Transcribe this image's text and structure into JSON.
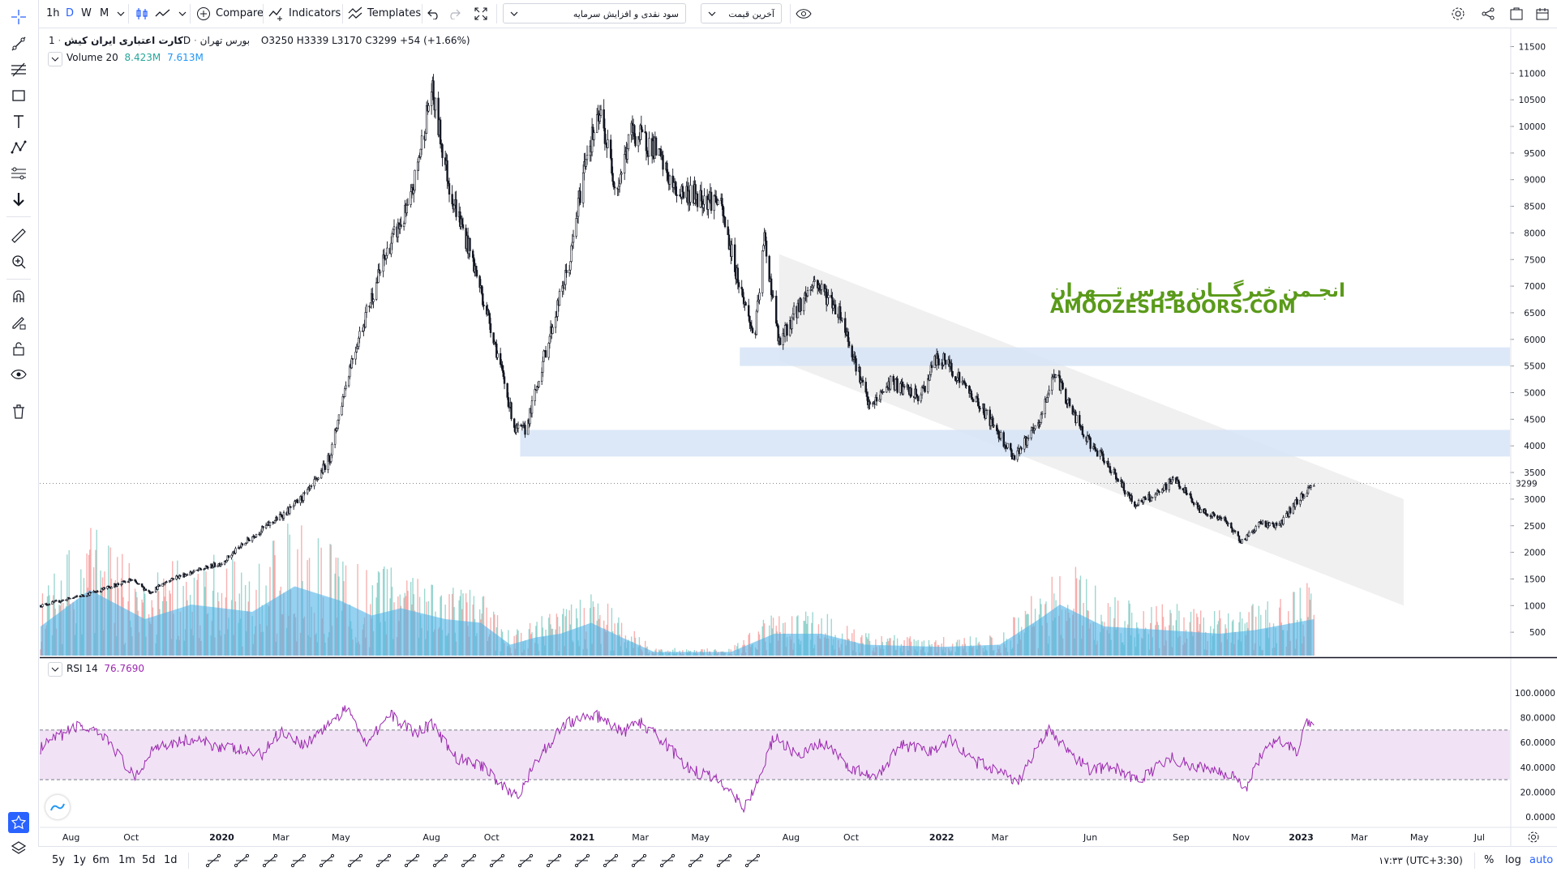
{
  "toolbar": {
    "intervals": [
      "1h",
      "D",
      "W",
      "M"
    ],
    "compare_label": "Compare",
    "indicators_label": "Indicators",
    "templates_label": "Templates",
    "dropdown_1": "سود نقدی و افزایش سرمایه",
    "dropdown_2": "آخرین قیمت"
  },
  "legend": {
    "symbol_name": "کارت اعتباری ایران کیش",
    "interval": "1D",
    "exchange": "بورس تهران",
    "open": "O3250",
    "high": "H3339",
    "low": "L3170",
    "close": "C3299",
    "change": "+54 (+1.66%)",
    "volume_label": "Volume 20",
    "volume_value": "8.423M",
    "volume_ma": "7.613M",
    "rsi_label": "RSI 14",
    "rsi_value": "76.7690"
  },
  "watermark": {
    "line1": "انجـمن خبرگـــان بورس تـــهران",
    "line2": "AMOOZESH-BOORS.COM"
  },
  "bottom": {
    "ranges": [
      "5y",
      "1y",
      "6m",
      "1m",
      "5d",
      "1d"
    ],
    "time": "۱۷:۳۳ (UTC+3:30)",
    "percent": "%",
    "log": "log",
    "auto": "auto"
  },
  "colors": {
    "up": "#26a69a",
    "down": "#ef5350",
    "volume_ma": "#4fb3e8",
    "rsi_line": "#9c27b0",
    "rsi_band": "#f1e3f5",
    "zone": "#d6e4f7",
    "channel": "#e9e9e9",
    "accent": "#2962ff"
  },
  "chart_data": [
    {
      "type": "candlestick",
      "title": "کارت اعتباری ایران کیش",
      "y_ticks": [
        500,
        1000,
        1500,
        2000,
        2500,
        3000,
        3500,
        4000,
        4500,
        5000,
        5500,
        6000,
        6500,
        7000,
        7500,
        8000,
        8500,
        9000,
        9500,
        10000,
        10500,
        11000,
        11500
      ],
      "ylim": [
        0,
        11800
      ],
      "last_price": 3299,
      "x_ticks": [
        "Aug",
        "Oct",
        "2020",
        "Mar",
        "May",
        "Aug",
        "Oct",
        "2021",
        "Mar",
        "May",
        "Aug",
        "Oct",
        "2022",
        "Mar",
        "Jun",
        "Sep",
        "Nov",
        "2023",
        "Mar",
        "May",
        "Jul"
      ],
      "price_path": [
        [
          "2019-07-01",
          1000
        ],
        [
          "2019-08-15",
          1200
        ],
        [
          "2019-10-01",
          1480
        ],
        [
          "2019-10-20",
          1250
        ],
        [
          "2019-11-10",
          1500
        ],
        [
          "2020-01-01",
          1800
        ],
        [
          "2020-02-01",
          2300
        ],
        [
          "2020-03-10",
          2800
        ],
        [
          "2020-04-01",
          3200
        ],
        [
          "2020-04-20",
          3800
        ],
        [
          "2020-05-10",
          5500
        ],
        [
          "2020-06-01",
          6800
        ],
        [
          "2020-06-20",
          7800
        ],
        [
          "2020-07-10",
          8500
        ],
        [
          "2020-08-01",
          10700
        ],
        [
          "2020-08-20",
          8800
        ],
        [
          "2020-09-10",
          7600
        ],
        [
          "2020-10-01",
          6200
        ],
        [
          "2020-10-25",
          4300
        ],
        [
          "2020-11-05",
          4300
        ],
        [
          "2020-11-25",
          5800
        ],
        [
          "2020-12-20",
          7500
        ],
        [
          "2021-01-05",
          9500
        ],
        [
          "2021-01-20",
          10200
        ],
        [
          "2021-02-05",
          8800
        ],
        [
          "2021-02-20",
          9900
        ],
        [
          "2021-03-15",
          9600
        ],
        [
          "2021-04-05",
          8800
        ],
        [
          "2021-05-20",
          8600
        ],
        [
          "2021-06-10",
          7000
        ],
        [
          "2021-06-25",
          6000
        ],
        [
          "2021-07-05",
          7900
        ],
        [
          "2021-07-20",
          5900
        ],
        [
          "2021-08-05",
          6500
        ],
        [
          "2021-08-25",
          7100
        ],
        [
          "2021-09-20",
          6500
        ],
        [
          "2021-10-20",
          4700
        ],
        [
          "2021-11-10",
          5200
        ],
        [
          "2021-12-10",
          4900
        ],
        [
          "2021-12-25",
          5600
        ],
        [
          "2022-01-05",
          5600
        ],
        [
          "2022-02-15",
          4600
        ],
        [
          "2022-03-15",
          3800
        ],
        [
          "2022-04-10",
          4400
        ],
        [
          "2022-04-25",
          5400
        ],
        [
          "2022-05-25",
          4200
        ],
        [
          "2022-06-25",
          3500
        ],
        [
          "2022-07-15",
          2900
        ],
        [
          "2022-08-10",
          3100
        ],
        [
          "2022-08-25",
          3400
        ],
        [
          "2022-09-20",
          2800
        ],
        [
          "2022-10-15",
          2600
        ],
        [
          "2022-11-02",
          2200
        ],
        [
          "2022-11-20",
          2550
        ],
        [
          "2022-12-10",
          2500
        ],
        [
          "2022-12-25",
          2900
        ],
        [
          "2023-01-14",
          3299
        ]
      ],
      "zones": [
        {
          "from": "2021-06-10",
          "to": "2023-08-01",
          "low": 5500,
          "high": 5850
        },
        {
          "from": "2020-10-30",
          "to": "2023-08-01",
          "low": 3800,
          "high": 4300
        }
      ],
      "channel": {
        "points": [
          [
            "2021-07-20",
            7600
          ],
          [
            "2023-04-15",
            3000
          ],
          [
            "2023-04-15",
            1000
          ],
          [
            "2021-07-20",
            5600
          ]
        ]
      }
    },
    {
      "type": "bar",
      "title": "Volume 20",
      "ma_path": [
        [
          "2019-07-01",
          0.4
        ],
        [
          "2019-08-20",
          0.9
        ],
        [
          "2019-10-15",
          0.5
        ],
        [
          "2019-12-01",
          0.7
        ],
        [
          "2020-02-01",
          0.6
        ],
        [
          "2020-03-15",
          0.95
        ],
        [
          "2020-05-01",
          0.75
        ],
        [
          "2020-06-01",
          0.55
        ],
        [
          "2020-07-01",
          0.65
        ],
        [
          "2020-08-15",
          0.5
        ],
        [
          "2020-09-20",
          0.45
        ],
        [
          "2020-10-20",
          0.15
        ],
        [
          "2020-11-15",
          0.25
        ],
        [
          "2020-12-10",
          0.3
        ],
        [
          "2021-01-10",
          0.45
        ],
        [
          "2021-02-10",
          0.25
        ],
        [
          "2021-03-15",
          0.05
        ],
        [
          "2021-06-01",
          0.05
        ],
        [
          "2021-07-15",
          0.3
        ],
        [
          "2021-09-01",
          0.3
        ],
        [
          "2021-10-15",
          0.15
        ],
        [
          "2022-01-01",
          0.12
        ],
        [
          "2022-03-01",
          0.15
        ],
        [
          "2022-04-10",
          0.5
        ],
        [
          "2022-05-01",
          0.7
        ],
        [
          "2022-06-15",
          0.4
        ],
        [
          "2022-08-15",
          0.35
        ],
        [
          "2022-10-10",
          0.3
        ],
        [
          "2022-11-15",
          0.35
        ],
        [
          "2023-01-14",
          0.5
        ]
      ],
      "bar_seed": 7
    },
    {
      "type": "line",
      "title": "RSI 14",
      "y_ticks": [
        0,
        20,
        40,
        60,
        80,
        100
      ],
      "ylim": [
        0,
        100
      ],
      "bands": [
        30,
        70
      ],
      "last_value": 76.769,
      "rsi_path": [
        [
          "2019-07-01",
          55
        ],
        [
          "2019-07-20",
          65
        ],
        [
          "2019-08-10",
          74
        ],
        [
          "2019-09-10",
          60
        ],
        [
          "2019-10-05",
          30
        ],
        [
          "2019-10-25",
          58
        ],
        [
          "2019-12-01",
          62
        ],
        [
          "2020-02-10",
          50
        ],
        [
          "2020-03-01",
          70
        ],
        [
          "2020-03-25",
          58
        ],
        [
          "2020-04-20",
          76
        ],
        [
          "2020-05-10",
          88
        ],
        [
          "2020-05-25",
          60
        ],
        [
          "2020-06-20",
          82
        ],
        [
          "2020-07-15",
          68
        ],
        [
          "2020-08-01",
          75
        ],
        [
          "2020-08-25",
          48
        ],
        [
          "2020-09-25",
          40
        ],
        [
          "2020-10-15",
          22
        ],
        [
          "2020-10-28",
          18
        ],
        [
          "2020-11-20",
          50
        ],
        [
          "2020-12-15",
          76
        ],
        [
          "2021-01-15",
          82
        ],
        [
          "2021-02-10",
          68
        ],
        [
          "2021-03-01",
          76
        ],
        [
          "2021-03-25",
          60
        ],
        [
          "2021-04-20",
          38
        ],
        [
          "2021-05-20",
          30
        ],
        [
          "2021-06-15",
          8
        ],
        [
          "2021-06-28",
          28
        ],
        [
          "2021-07-15",
          65
        ],
        [
          "2021-08-10",
          48
        ],
        [
          "2021-09-01",
          60
        ],
        [
          "2021-10-01",
          40
        ],
        [
          "2021-10-25",
          30
        ],
        [
          "2021-11-20",
          58
        ],
        [
          "2021-12-20",
          52
        ],
        [
          "2022-01-10",
          63
        ],
        [
          "2022-02-01",
          45
        ],
        [
          "2022-03-01",
          38
        ],
        [
          "2022-03-20",
          28
        ],
        [
          "2022-04-20",
          72
        ],
        [
          "2022-05-10",
          52
        ],
        [
          "2022-06-01",
          38
        ],
        [
          "2022-06-25",
          40
        ],
        [
          "2022-07-20",
          28
        ],
        [
          "2022-08-20",
          48
        ],
        [
          "2022-09-10",
          42
        ],
        [
          "2022-10-01",
          38
        ],
        [
          "2022-10-25",
          34
        ],
        [
          "2022-11-05",
          22
        ],
        [
          "2022-11-25",
          55
        ],
        [
          "2022-12-10",
          62
        ],
        [
          "2022-12-28",
          52
        ],
        [
          "2023-01-05",
          78
        ],
        [
          "2023-01-14",
          76.8
        ]
      ]
    }
  ]
}
